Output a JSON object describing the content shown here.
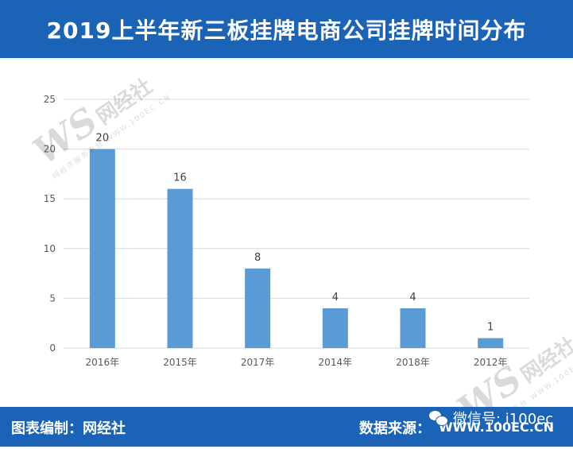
{
  "header": {
    "title": "2019上半年新三板挂牌电商公司挂牌时间分布"
  },
  "footer": {
    "left_label": "图表编制：网经社",
    "right_label": "数据来源：",
    "source_url": "WWW.100EC.CN",
    "wechat_text": "微信号: i100ec"
  },
  "watermark": {
    "logo_text": "WS",
    "logo_cn": "网经社",
    "sub_text": "网经济服务平台 WWW.100EC.CN"
  },
  "colors": {
    "bar": "#5b9bd5",
    "header_bg": "#1a63b6",
    "grid": "#d9d9d9",
    "axis_text": "#595959"
  },
  "chart_data": {
    "type": "bar",
    "categories": [
      "2016年",
      "2015年",
      "2017年",
      "2014年",
      "2018年",
      "2012年"
    ],
    "values": [
      20,
      16,
      8,
      4,
      4,
      1
    ],
    "ylim": [
      0,
      25
    ],
    "yticks": [
      0,
      5,
      10,
      15,
      20,
      25
    ],
    "grid": true,
    "data_labels": true
  }
}
